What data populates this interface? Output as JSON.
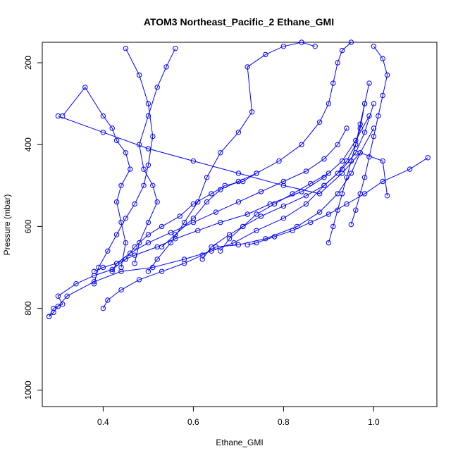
{
  "chart_data": {
    "type": "line",
    "title": "ATOM3 Northeast_Pacific_2 Ethane_GMI",
    "xlabel": "Ethane_GMI",
    "ylabel": "Pressure (mbar)",
    "xlim": [
      0.265,
      1.14
    ],
    "ylim": [
      1040,
      150
    ],
    "y_reversed": true,
    "grid": false,
    "x_ticks": [
      0.4,
      0.6,
      0.8,
      1.0
    ],
    "x_tick_labels": [
      "0.4",
      "0.6",
      "0.8",
      "1.0"
    ],
    "y_ticks": [
      200,
      400,
      600,
      800,
      1000
    ],
    "y_tick_labels": [
      "200",
      "400",
      "600",
      "800",
      "1000"
    ],
    "series_color": "#0000ff",
    "series": [
      {
        "x": [
          0.28,
          0.29,
          0.31,
          0.3,
          0.34,
          0.38,
          0.42,
          0.45,
          0.47,
          0.5,
          0.53,
          0.57,
          0.6,
          0.64,
          0.67,
          0.71,
          0.74
        ],
        "y": [
          820,
          800,
          790,
          770,
          740,
          720,
          705,
          680,
          650,
          620,
          600,
          575,
          545,
          520,
          500,
          490,
          470
        ]
      },
      {
        "x": [
          0.28,
          0.29,
          0.3,
          0.32,
          0.38,
          0.44,
          0.51,
          0.58,
          0.64,
          0.69,
          0.74,
          0.8,
          0.85,
          0.89,
          0.93,
          0.96,
          0.98,
          1.0
        ],
        "y": [
          820,
          810,
          795,
          770,
          735,
          710,
          700,
          680,
          660,
          640,
          610,
          580,
          545,
          500,
          460,
          420,
          370,
          300
        ]
      },
      {
        "x": [
          0.4,
          0.41,
          0.44,
          0.48,
          0.53,
          0.58,
          0.62,
          0.65,
          0.7,
          0.76,
          0.83,
          0.88,
          0.92,
          0.95,
          0.97,
          1.0
        ],
        "y": [
          800,
          780,
          755,
          730,
          710,
          690,
          670,
          650,
          645,
          630,
          600,
          565,
          520,
          470,
          420,
          360
        ]
      },
      {
        "x": [
          0.38,
          0.4,
          0.43,
          0.47,
          0.52,
          0.56,
          0.61,
          0.66,
          0.72,
          0.77,
          0.84,
          0.89,
          0.93,
          0.96,
          0.99
        ],
        "y": [
          710,
          700,
          690,
          670,
          650,
          630,
          610,
          590,
          570,
          545,
          515,
          480,
          440,
          390,
          330
        ]
      },
      {
        "x": [
          0.42,
          0.43,
          0.46,
          0.5,
          0.55,
          0.6,
          0.65,
          0.7,
          0.75,
          0.8,
          0.85,
          0.89,
          0.92,
          0.94
        ],
        "y": [
          710,
          690,
          665,
          640,
          615,
          590,
          565,
          540,
          515,
          490,
          465,
          435,
          400,
          360
        ]
      },
      {
        "x": [
          0.38,
          0.39,
          0.41,
          0.43,
          0.45,
          0.47,
          0.49,
          0.5,
          0.51,
          0.5,
          0.48,
          0.45
        ],
        "y": [
          740,
          700,
          660,
          620,
          580,
          545,
          500,
          450,
          380,
          300,
          230,
          165
        ]
      },
      {
        "x": [
          0.44,
          0.45,
          0.44,
          0.43,
          0.44,
          0.46,
          0.45,
          0.43,
          0.42,
          0.4,
          0.36,
          0.31
        ],
        "y": [
          700,
          640,
          590,
          540,
          500,
          460,
          420,
          390,
          360,
          330,
          260,
          330
        ]
      },
      {
        "x": [
          0.47,
          0.48,
          0.5,
          0.52,
          0.51,
          0.49,
          0.48,
          0.5,
          0.52,
          0.54,
          0.56
        ],
        "y": [
          690,
          640,
          590,
          540,
          500,
          460,
          400,
          330,
          260,
          210,
          165
        ]
      },
      {
        "x": [
          0.5,
          0.52,
          0.55,
          0.58,
          0.61,
          0.63,
          0.66,
          0.7,
          0.73,
          0.72,
          0.76,
          0.8,
          0.84,
          0.87
        ],
        "y": [
          710,
          680,
          640,
          590,
          540,
          480,
          420,
          370,
          320,
          210,
          180,
          160,
          150,
          160
        ]
      },
      {
        "x": [
          0.53,
          0.56,
          0.6,
          0.63,
          0.66,
          0.7,
          0.74,
          0.79,
          0.84,
          0.88,
          0.9,
          0.91,
          0.92,
          0.93,
          0.95
        ],
        "y": [
          650,
          620,
          580,
          540,
          510,
          490,
          470,
          440,
          400,
          345,
          300,
          250,
          200,
          170,
          150
        ]
      },
      {
        "x": [
          0.62,
          0.64,
          0.68,
          0.71,
          0.75,
          0.8,
          0.85,
          0.89,
          0.92,
          0.94,
          0.96,
          0.97,
          0.98
        ],
        "y": [
          680,
          650,
          620,
          600,
          575,
          550,
          525,
          500,
          470,
          440,
          400,
          350,
          300
        ]
      },
      {
        "x": [
          0.72,
          0.74,
          0.78,
          0.82,
          0.86,
          0.9,
          0.94,
          0.98,
          1.02,
          1.08,
          1.12
        ],
        "y": [
          645,
          640,
          625,
          610,
          590,
          570,
          545,
          520,
          490,
          460,
          432
        ]
      },
      {
        "x": [
          0.3,
          0.4,
          0.5,
          0.6,
          0.7,
          0.8,
          0.88,
          0.93,
          0.97,
          1.02,
          1.03
        ],
        "y": [
          330,
          370,
          410,
          440,
          470,
          500,
          520,
          470,
          420,
          440,
          525
        ]
      },
      {
        "x": [
          0.95,
          0.96,
          0.97,
          0.98,
          0.99,
          1.0,
          1.01,
          1.02,
          1.03,
          1.02,
          1.0
        ],
        "y": [
          595,
          560,
          520,
          480,
          430,
          380,
          330,
          280,
          230,
          190,
          160
        ]
      },
      {
        "x": [
          0.9,
          0.91,
          0.92,
          0.93,
          0.94,
          0.95,
          0.96,
          0.97,
          0.98,
          0.99
        ],
        "y": [
          640,
          600,
          560,
          520,
          480,
          440,
          400,
          360,
          300,
          250
        ]
      },
      {
        "x": [
          0.66,
          0.68,
          0.71,
          0.74,
          0.78,
          0.82,
          0.86,
          0.9
        ],
        "y": [
          660,
          630,
          600,
          570,
          545,
          520,
          495,
          470
        ]
      }
    ]
  }
}
